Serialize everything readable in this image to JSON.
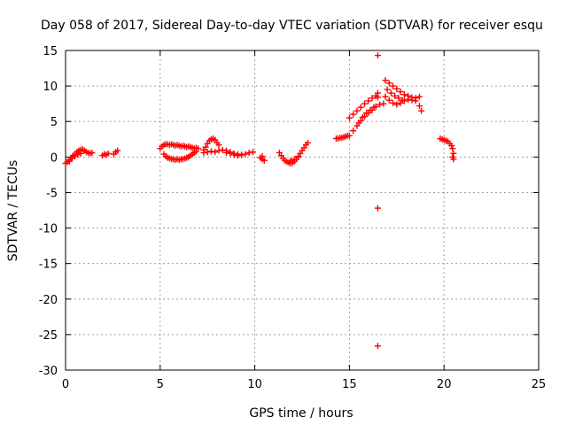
{
  "chart_data": {
    "type": "scatter",
    "title": "Day 058 of 2017, Sidereal Day-to-day VTEC variation (SDTVAR) for receiver esqu",
    "xlabel": "GPS time / hours",
    "ylabel": "SDTVAR / TECUs",
    "xlim": [
      0,
      25
    ],
    "ylim": [
      -30,
      15
    ],
    "xticks": [
      0,
      5,
      10,
      15,
      20,
      25
    ],
    "yticks": [
      -30,
      -25,
      -20,
      -15,
      -10,
      -5,
      0,
      5,
      10,
      15
    ],
    "grid": true,
    "marker": "+",
    "color": "#ff0000",
    "series": [
      {
        "points": [
          [
            0.0,
            -0.9
          ],
          [
            0.1,
            -0.7
          ],
          [
            0.2,
            -0.4
          ],
          [
            0.3,
            -0.1
          ],
          [
            0.4,
            0.2
          ],
          [
            0.5,
            0.4
          ],
          [
            0.6,
            0.7
          ],
          [
            0.7,
            0.9
          ],
          [
            0.8,
            1.0
          ],
          [
            0.9,
            1.1
          ],
          [
            1.0,
            0.9
          ],
          [
            1.1,
            0.7
          ],
          [
            1.2,
            0.6
          ],
          [
            1.3,
            0.5
          ],
          [
            1.4,
            0.6
          ],
          [
            0.2,
            -0.6
          ],
          [
            0.35,
            -0.2
          ],
          [
            0.5,
            0.1
          ],
          [
            0.65,
            0.3
          ],
          [
            0.8,
            0.5
          ],
          [
            1.95,
            0.2
          ],
          [
            2.05,
            0.4
          ],
          [
            2.15,
            0.3
          ],
          [
            2.25,
            0.5
          ],
          [
            2.55,
            0.4
          ],
          [
            2.65,
            0.7
          ],
          [
            2.75,
            0.9
          ],
          [
            5.0,
            1.2
          ],
          [
            5.1,
            1.5
          ],
          [
            5.2,
            1.7
          ],
          [
            5.3,
            1.8
          ],
          [
            5.4,
            1.8
          ],
          [
            5.5,
            1.7
          ],
          [
            5.6,
            1.8
          ],
          [
            5.7,
            1.7
          ],
          [
            5.8,
            1.6
          ],
          [
            5.9,
            1.7
          ],
          [
            6.0,
            1.6
          ],
          [
            6.1,
            1.5
          ],
          [
            6.2,
            1.6
          ],
          [
            6.3,
            1.5
          ],
          [
            6.4,
            1.4
          ],
          [
            6.5,
            1.5
          ],
          [
            6.6,
            1.4
          ],
          [
            6.7,
            1.3
          ],
          [
            6.8,
            1.2
          ],
          [
            6.9,
            1.3
          ],
          [
            7.0,
            1.2
          ],
          [
            5.2,
            0.4
          ],
          [
            5.3,
            0.1
          ],
          [
            5.4,
            -0.1
          ],
          [
            5.5,
            -0.2
          ],
          [
            5.6,
            -0.3
          ],
          [
            5.7,
            -0.3
          ],
          [
            5.8,
            -0.4
          ],
          [
            5.9,
            -0.3
          ],
          [
            6.0,
            -0.4
          ],
          [
            6.1,
            -0.3
          ],
          [
            6.2,
            -0.3
          ],
          [
            6.3,
            -0.2
          ],
          [
            6.4,
            -0.1
          ],
          [
            6.5,
            0.0
          ],
          [
            6.6,
            0.2
          ],
          [
            6.7,
            0.4
          ],
          [
            6.8,
            0.6
          ],
          [
            6.9,
            0.8
          ],
          [
            7.3,
            1.0
          ],
          [
            7.4,
            1.4
          ],
          [
            7.5,
            1.9
          ],
          [
            7.6,
            2.3
          ],
          [
            7.7,
            2.5
          ],
          [
            7.8,
            2.6
          ],
          [
            7.9,
            2.4
          ],
          [
            8.0,
            2.0
          ],
          [
            8.1,
            1.7
          ],
          [
            7.3,
            0.6
          ],
          [
            7.5,
            0.7
          ],
          [
            7.7,
            0.8
          ],
          [
            7.9,
            0.7
          ],
          [
            8.1,
            0.9
          ],
          [
            8.3,
            1.0
          ],
          [
            8.5,
            0.9
          ],
          [
            8.7,
            0.7
          ],
          [
            8.9,
            0.5
          ],
          [
            9.1,
            0.4
          ],
          [
            9.3,
            0.3
          ],
          [
            9.5,
            0.4
          ],
          [
            9.7,
            0.6
          ],
          [
            9.9,
            0.7
          ],
          [
            8.5,
            0.6
          ],
          [
            8.7,
            0.5
          ],
          [
            8.9,
            0.3
          ],
          [
            9.1,
            0.2
          ],
          [
            9.3,
            0.3
          ],
          [
            10.3,
            -0.1
          ],
          [
            10.4,
            -0.3
          ],
          [
            10.5,
            -0.5
          ],
          [
            10.4,
            0.1
          ],
          [
            11.3,
            0.6
          ],
          [
            11.4,
            0.2
          ],
          [
            11.5,
            -0.2
          ],
          [
            11.6,
            -0.5
          ],
          [
            11.7,
            -0.7
          ],
          [
            11.8,
            -0.8
          ],
          [
            11.9,
            -0.9
          ],
          [
            12.0,
            -0.8
          ],
          [
            12.1,
            -0.6
          ],
          [
            12.2,
            -0.3
          ],
          [
            12.3,
            0.1
          ],
          [
            12.4,
            0.5
          ],
          [
            12.5,
            0.9
          ],
          [
            12.6,
            1.3
          ],
          [
            12.7,
            1.7
          ],
          [
            12.8,
            2.0
          ],
          [
            11.9,
            -0.5
          ],
          [
            12.1,
            -0.3
          ],
          [
            12.3,
            0.0
          ],
          [
            14.3,
            2.6
          ],
          [
            14.4,
            2.6
          ],
          [
            14.5,
            2.7
          ],
          [
            14.6,
            2.7
          ],
          [
            14.7,
            2.8
          ],
          [
            14.8,
            2.9
          ],
          [
            14.9,
            3.0
          ],
          [
            15.0,
            3.0
          ],
          [
            15.2,
            3.7
          ],
          [
            15.4,
            4.4
          ],
          [
            15.6,
            5.1
          ],
          [
            15.8,
            5.7
          ],
          [
            16.0,
            6.2
          ],
          [
            16.2,
            6.6
          ],
          [
            16.4,
            7.1
          ],
          [
            16.6,
            7.4
          ],
          [
            16.8,
            7.5
          ],
          [
            15.0,
            5.5
          ],
          [
            15.2,
            6.0
          ],
          [
            15.4,
            6.5
          ],
          [
            15.6,
            7.0
          ],
          [
            15.8,
            7.5
          ],
          [
            16.0,
            7.9
          ],
          [
            16.2,
            8.3
          ],
          [
            16.4,
            8.6
          ],
          [
            16.5,
            9.0
          ],
          [
            16.5,
            8.4
          ],
          [
            15.5,
            4.8
          ],
          [
            15.7,
            5.6
          ],
          [
            15.9,
            6.2
          ],
          [
            16.1,
            6.6
          ],
          [
            16.3,
            7.0
          ],
          [
            16.9,
            10.8
          ],
          [
            17.1,
            10.4
          ],
          [
            17.3,
            10.0
          ],
          [
            17.5,
            9.6
          ],
          [
            17.7,
            9.2
          ],
          [
            17.9,
            8.8
          ],
          [
            18.1,
            8.6
          ],
          [
            18.3,
            8.4
          ],
          [
            18.5,
            8.3
          ],
          [
            18.7,
            8.5
          ],
          [
            16.9,
            8.5
          ],
          [
            17.1,
            8.0
          ],
          [
            17.3,
            7.6
          ],
          [
            17.5,
            7.4
          ],
          [
            17.7,
            7.6
          ],
          [
            17.9,
            7.9
          ],
          [
            18.1,
            8.1
          ],
          [
            18.3,
            8.0
          ],
          [
            18.5,
            7.9
          ],
          [
            18.7,
            7.2
          ],
          [
            18.8,
            6.5
          ],
          [
            17.0,
            9.5
          ],
          [
            17.2,
            9.0
          ],
          [
            17.4,
            8.6
          ],
          [
            17.6,
            8.3
          ],
          [
            17.8,
            8.0
          ],
          [
            16.5,
            14.3
          ],
          [
            16.5,
            -7.2
          ],
          [
            16.5,
            -26.6
          ],
          [
            19.8,
            2.6
          ],
          [
            19.9,
            2.5
          ],
          [
            20.0,
            2.4
          ],
          [
            20.1,
            2.3
          ],
          [
            20.2,
            2.2
          ],
          [
            20.3,
            1.9
          ],
          [
            20.4,
            1.6
          ],
          [
            20.45,
            1.2
          ],
          [
            20.5,
            0.5
          ],
          [
            20.45,
            0.0
          ],
          [
            20.5,
            -0.3
          ]
        ]
      }
    ]
  }
}
